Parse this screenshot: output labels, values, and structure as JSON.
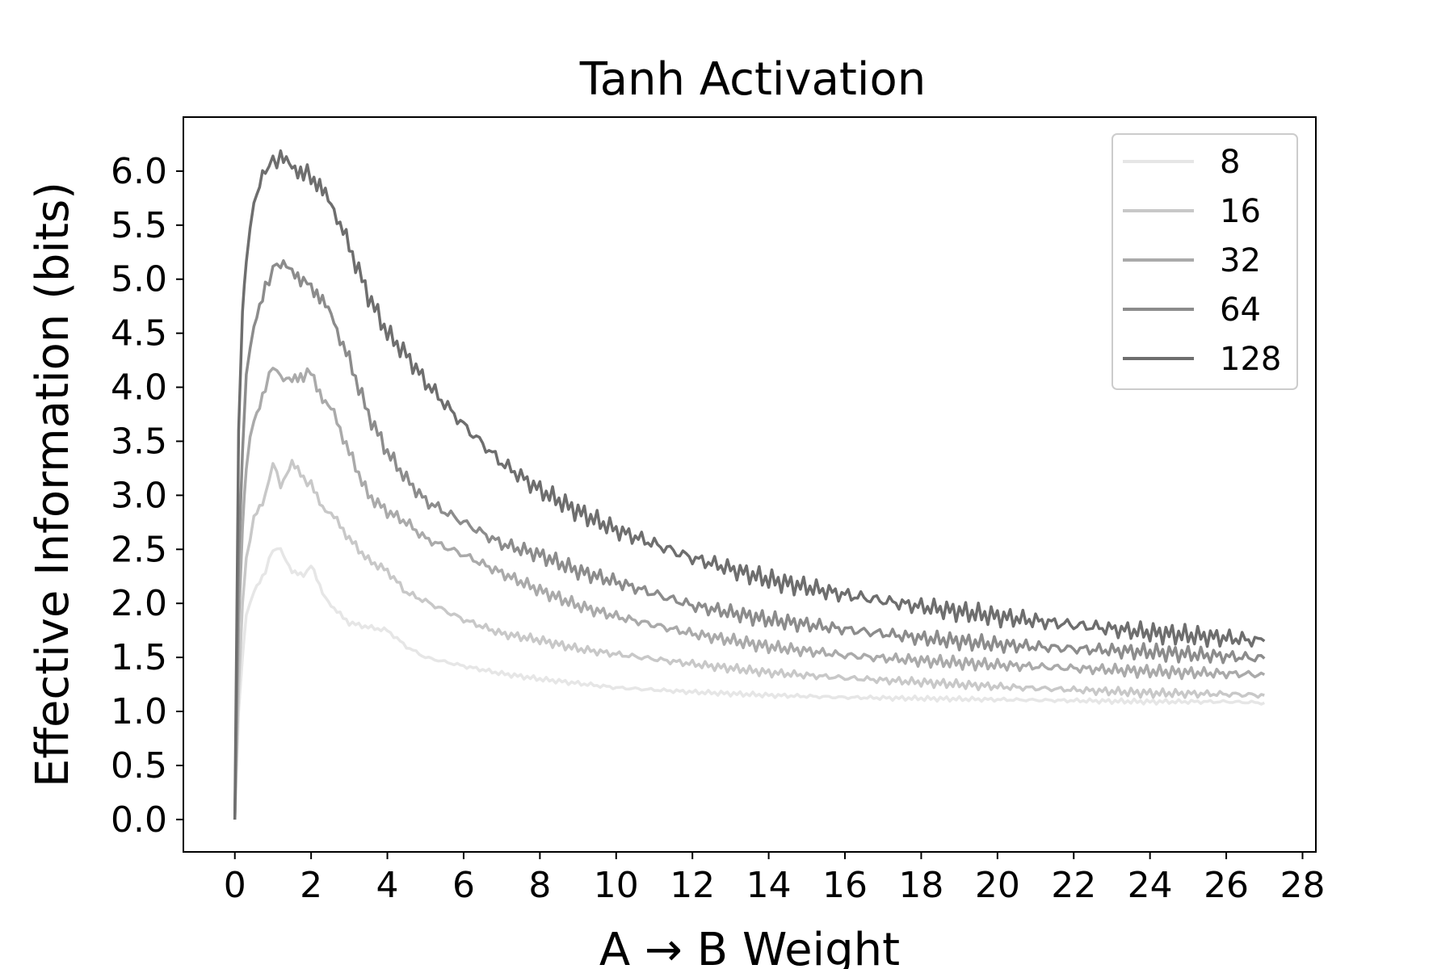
{
  "chart_data": {
    "type": "line",
    "title": "Tanh Activation",
    "xlabel": "A → B Weight",
    "ylabel": "Effective Information (bits)",
    "xlim": [
      -1.35,
      28.35
    ],
    "ylim": [
      -0.3,
      6.5
    ],
    "x_ticks": [
      0,
      2,
      4,
      6,
      8,
      10,
      12,
      14,
      16,
      18,
      20,
      22,
      24,
      26,
      28
    ],
    "y_ticks": [
      0.0,
      0.5,
      1.0,
      1.5,
      2.0,
      2.5,
      3.0,
      3.5,
      4.0,
      4.5,
      5.0,
      5.5,
      6.0
    ],
    "grid": false,
    "legend": {
      "placement": "top-right",
      "entries": [
        "8",
        "16",
        "32",
        "64",
        "128"
      ]
    },
    "series": [
      {
        "name": "8",
        "color": "#e6e6e6",
        "x": [
          0,
          0.1,
          0.2,
          0.3,
          0.5,
          0.8,
          1.0,
          1.2,
          1.5,
          1.8,
          2.0,
          2.3,
          2.6,
          3.0,
          3.5,
          4.0,
          4.5,
          5,
          6,
          7,
          8,
          9,
          10,
          12,
          14,
          16,
          18,
          20,
          22,
          24,
          26,
          27
        ],
        "y": [
          0,
          1.0,
          1.5,
          1.9,
          2.1,
          2.3,
          2.5,
          2.5,
          2.3,
          2.25,
          2.35,
          2.1,
          1.95,
          1.82,
          1.78,
          1.75,
          1.6,
          1.5,
          1.42,
          1.35,
          1.3,
          1.26,
          1.22,
          1.18,
          1.15,
          1.13,
          1.12,
          1.11,
          1.1,
          1.09,
          1.09,
          1.08
        ]
      },
      {
        "name": "16",
        "color": "#c8c8c8",
        "x": [
          0,
          0.1,
          0.2,
          0.3,
          0.5,
          0.8,
          1.0,
          1.2,
          1.5,
          1.8,
          2.0,
          2.3,
          2.6,
          3.0,
          3.5,
          4.0,
          4.5,
          5,
          6,
          7,
          8,
          9,
          10,
          12,
          14,
          16,
          18,
          20,
          22,
          24,
          26,
          27
        ],
        "y": [
          0,
          1.2,
          2.0,
          2.4,
          2.8,
          3.0,
          3.3,
          3.1,
          3.3,
          3.15,
          3.1,
          2.9,
          2.8,
          2.6,
          2.4,
          2.3,
          2.1,
          2.02,
          1.85,
          1.72,
          1.66,
          1.58,
          1.53,
          1.44,
          1.36,
          1.31,
          1.27,
          1.23,
          1.2,
          1.17,
          1.16,
          1.15
        ]
      },
      {
        "name": "32",
        "color": "#aaaaaa",
        "x": [
          0,
          0.1,
          0.2,
          0.3,
          0.5,
          0.8,
          1.0,
          1.2,
          1.5,
          1.8,
          2.0,
          2.3,
          2.6,
          3.0,
          3.5,
          4.0,
          4.5,
          5,
          6,
          7,
          8,
          9,
          10,
          12,
          14,
          16,
          18,
          20,
          22,
          24,
          26,
          27
        ],
        "y": [
          0,
          1.8,
          2.7,
          3.3,
          3.7,
          4.0,
          4.2,
          4.1,
          4.05,
          4.1,
          4.15,
          3.9,
          3.75,
          3.4,
          3.0,
          2.85,
          2.75,
          2.6,
          2.45,
          2.28,
          2.12,
          1.98,
          1.88,
          1.72,
          1.6,
          1.52,
          1.47,
          1.43,
          1.4,
          1.37,
          1.35,
          1.34
        ]
      },
      {
        "name": "64",
        "color": "#8c8c8c",
        "x": [
          0,
          0.1,
          0.2,
          0.3,
          0.5,
          0.8,
          1.0,
          1.2,
          1.5,
          1.8,
          2.0,
          2.3,
          2.6,
          3.0,
          3.5,
          4.0,
          4.5,
          5,
          6,
          7,
          8,
          9,
          10,
          12,
          14,
          16,
          18,
          20,
          22,
          24,
          26,
          27
        ],
        "y": [
          0,
          2.4,
          3.4,
          4.1,
          4.6,
          4.9,
          5.1,
          5.15,
          5.05,
          5.0,
          4.95,
          4.8,
          4.6,
          4.25,
          3.75,
          3.4,
          3.15,
          2.95,
          2.75,
          2.55,
          2.45,
          2.3,
          2.2,
          1.98,
          1.85,
          1.76,
          1.68,
          1.62,
          1.58,
          1.55,
          1.51,
          1.49
        ]
      },
      {
        "name": "128",
        "color": "#6e6e6e",
        "x": [
          0,
          0.1,
          0.2,
          0.3,
          0.5,
          0.8,
          1.0,
          1.2,
          1.5,
          1.8,
          2.0,
          2.3,
          2.6,
          3.0,
          3.5,
          4.0,
          4.5,
          5,
          6,
          7,
          8,
          9,
          10,
          12,
          14,
          16,
          18,
          20,
          22,
          24,
          26,
          27
        ],
        "y": [
          0,
          3.6,
          4.7,
          5.2,
          5.7,
          6.0,
          6.1,
          6.1,
          6.05,
          6.0,
          5.95,
          5.8,
          5.65,
          5.3,
          4.85,
          4.5,
          4.3,
          4.05,
          3.65,
          3.3,
          3.05,
          2.85,
          2.68,
          2.42,
          2.22,
          2.08,
          1.97,
          1.88,
          1.8,
          1.73,
          1.68,
          1.65
        ]
      }
    ]
  }
}
